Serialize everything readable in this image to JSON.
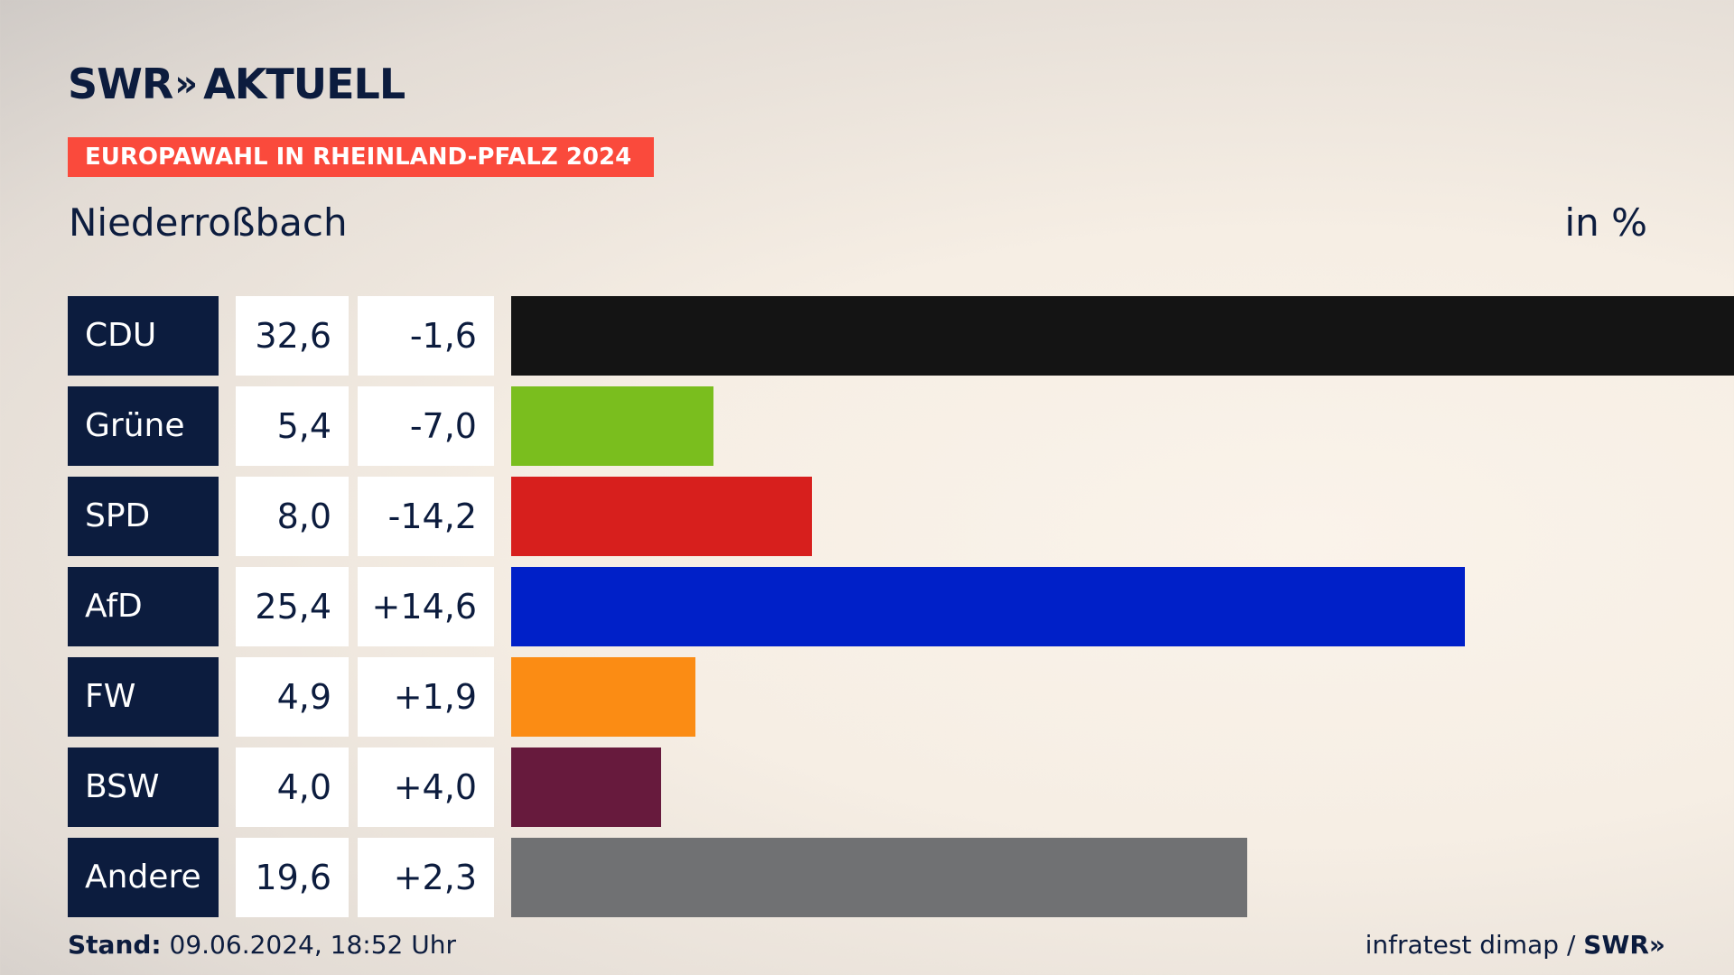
{
  "brand": {
    "name": "SWR",
    "chevrons": "»",
    "section": "AKTUELL"
  },
  "banner": "EUROPAWAHL IN RHEINLAND-PFALZ 2024",
  "location": "Niederroßbach",
  "unit_label": "in %",
  "chart_data": {
    "type": "bar",
    "orientation": "horizontal",
    "title": "Niederroßbach",
    "categories": [
      "CDU",
      "Grüne",
      "SPD",
      "AfD",
      "FW",
      "BSW",
      "Andere"
    ],
    "values": [
      32.6,
      5.4,
      8.0,
      25.4,
      4.9,
      4.0,
      19.6
    ],
    "value_labels": [
      "32,6",
      "5,4",
      "8,0",
      "25,4",
      "4,9",
      "4,0",
      "19,6"
    ],
    "changes": [
      -1.6,
      -7.0,
      -14.2,
      14.6,
      1.9,
      4.0,
      2.3
    ],
    "change_labels": [
      "-1,6",
      "-7,0",
      "-14,2",
      "+14,6",
      "+1,9",
      "+4,0",
      "+2,3"
    ],
    "colors": [
      "#141414",
      "#7abe1e",
      "#d71f1d",
      "#0020c8",
      "#fb8c14",
      "#671a3d",
      "#707173"
    ],
    "xlim": [
      0,
      32.6
    ]
  },
  "footer": {
    "stand_label": "Stand:",
    "stand_value": "09.06.2024, 18:52 Uhr",
    "source": "infratest dimap /",
    "source_brand": "SWR»"
  }
}
